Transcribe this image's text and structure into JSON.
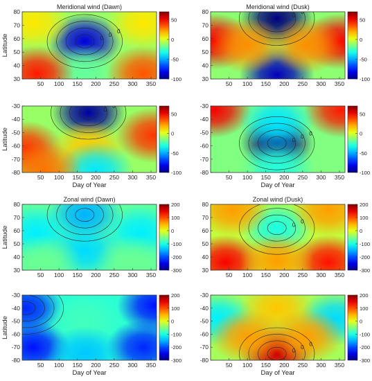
{
  "chart_data": [
    {
      "type": "heatmap",
      "title": "Meridional wind (Dawn)",
      "xlabel": "",
      "ylabel": "Latitude",
      "x_range": [
        0,
        365
      ],
      "y_range": [
        30,
        80
      ],
      "xticks": [
        "50",
        "100",
        "150",
        "200",
        "250",
        "300",
        "350"
      ],
      "yticks": [
        "30",
        "40",
        "50",
        "60",
        "70",
        "80"
      ],
      "color_range": [
        -100,
        70
      ],
      "colorbar_ticks": [
        "50",
        "0",
        "-50",
        "-100"
      ],
      "contour_labels": [
        "0",
        "0",
        "0"
      ],
      "features": [
        {
          "x": 170,
          "y": 58,
          "value": -85
        },
        {
          "x": 170,
          "y": 35,
          "value": -20
        },
        {
          "x": 40,
          "y": 34,
          "value": 45
        },
        {
          "x": 330,
          "y": 34,
          "value": 35
        },
        {
          "x": 30,
          "y": 72,
          "value": 10
        },
        {
          "x": 330,
          "y": 72,
          "value": 10
        }
      ]
    },
    {
      "type": "heatmap",
      "title": "Meridional wind (Dusk)",
      "xlabel": "",
      "ylabel": "",
      "x_range": [
        0,
        365
      ],
      "y_range": [
        30,
        80
      ],
      "xticks": [
        "50",
        "100",
        "150",
        "200",
        "250",
        "300",
        "350"
      ],
      "yticks": [
        "30",
        "40",
        "50",
        "60",
        "70",
        "80"
      ],
      "color_range": [
        -100,
        70
      ],
      "colorbar_ticks": [
        "50",
        "0",
        "-50",
        "-100"
      ],
      "contour_labels": [
        "0",
        "0"
      ],
      "features": [
        {
          "x": 180,
          "y": 75,
          "value": -100
        },
        {
          "x": 180,
          "y": 33,
          "value": -90
        },
        {
          "x": 10,
          "y": 58,
          "value": 50
        },
        {
          "x": 350,
          "y": 58,
          "value": 50
        },
        {
          "x": 100,
          "y": 55,
          "value": 25
        },
        {
          "x": 260,
          "y": 55,
          "value": 25
        }
      ]
    },
    {
      "type": "heatmap",
      "title": "",
      "xlabel": "Day of Year",
      "ylabel": "Latitude",
      "x_range": [
        0,
        365
      ],
      "y_range": [
        -80,
        -30
      ],
      "xticks": [
        "50",
        "100",
        "150",
        "200",
        "250",
        "300",
        "350"
      ],
      "yticks": [
        "-80",
        "-70",
        "-60",
        "-50",
        "-40",
        "-30"
      ],
      "color_range": [
        -100,
        70
      ],
      "colorbar_ticks": [
        "50",
        "0",
        "-50",
        "-100"
      ],
      "contour_labels": [
        "0",
        "0"
      ],
      "features": [
        {
          "x": 180,
          "y": -35,
          "value": -95
        },
        {
          "x": 10,
          "y": -62,
          "value": 40
        },
        {
          "x": 355,
          "y": -52,
          "value": 40
        },
        {
          "x": 180,
          "y": -62,
          "value": 15
        },
        {
          "x": 200,
          "y": -78,
          "value": -40
        },
        {
          "x": 60,
          "y": -78,
          "value": 30
        }
      ]
    },
    {
      "type": "heatmap",
      "title": "",
      "xlabel": "Day of Year",
      "ylabel": "",
      "x_range": [
        0,
        365
      ],
      "y_range": [
        -80,
        -30
      ],
      "xticks": [
        "50",
        "100",
        "150",
        "200",
        "250",
        "300",
        "350"
      ],
      "yticks": [
        "-80",
        "-70",
        "-60",
        "-50",
        "-40",
        "-30"
      ],
      "color_range": [
        -100,
        70
      ],
      "colorbar_ticks": [
        "50",
        "0",
        "-50",
        "-100"
      ],
      "contour_labels": [
        "0",
        "0",
        "0"
      ],
      "features": [
        {
          "x": 180,
          "y": -58,
          "value": -100
        },
        {
          "x": 10,
          "y": -33,
          "value": 50
        },
        {
          "x": 355,
          "y": -33,
          "value": 45
        },
        {
          "x": 180,
          "y": -42,
          "value": -40
        },
        {
          "x": 180,
          "y": -76,
          "value": -30
        },
        {
          "x": 30,
          "y": -78,
          "value": -15
        }
      ]
    },
    {
      "type": "heatmap",
      "title": "Zonal wind (Dawn)",
      "xlabel": "",
      "ylabel": "Latitude",
      "x_range": [
        0,
        365
      ],
      "y_range": [
        30,
        80
      ],
      "xticks": [
        "50",
        "100",
        "150",
        "200",
        "250",
        "300",
        "350"
      ],
      "yticks": [
        "30",
        "40",
        "50",
        "60",
        "70",
        "80"
      ],
      "color_range": [
        -300,
        200
      ],
      "colorbar_ticks": [
        "200",
        "100",
        "0",
        "-100",
        "-200",
        "-300"
      ],
      "contour_labels": [],
      "features": [
        {
          "x": 170,
          "y": 72,
          "value": -150
        },
        {
          "x": 40,
          "y": 58,
          "value": -120
        },
        {
          "x": 320,
          "y": 58,
          "value": -120
        },
        {
          "x": 170,
          "y": 45,
          "value": -130
        },
        {
          "x": 60,
          "y": 36,
          "value": -60
        },
        {
          "x": 300,
          "y": 36,
          "value": -60
        }
      ]
    },
    {
      "type": "heatmap",
      "title": "Zonal wind (Dusk)",
      "xlabel": "",
      "ylabel": "",
      "x_range": [
        0,
        365
      ],
      "y_range": [
        30,
        80
      ],
      "xticks": [
        "50",
        "100",
        "150",
        "200",
        "250",
        "300",
        "350"
      ],
      "yticks": [
        "30",
        "40",
        "50",
        "60",
        "70",
        "80"
      ],
      "color_range": [
        -300,
        200
      ],
      "colorbar_ticks": [
        "200",
        "100",
        "0",
        "-100",
        "-200",
        "-300"
      ],
      "contour_labels": [
        "0",
        "0"
      ],
      "features": [
        {
          "x": 180,
          "y": 62,
          "value": -100
        },
        {
          "x": 40,
          "y": 36,
          "value": 140
        },
        {
          "x": 320,
          "y": 36,
          "value": 130
        },
        {
          "x": 180,
          "y": 37,
          "value": 60
        },
        {
          "x": 60,
          "y": 76,
          "value": 60
        },
        {
          "x": 320,
          "y": 76,
          "value": 60
        }
      ]
    },
    {
      "type": "heatmap",
      "title": "",
      "xlabel": "Day of Year",
      "ylabel": "Latitude",
      "x_range": [
        0,
        365
      ],
      "y_range": [
        -80,
        -30
      ],
      "xticks": [
        "50",
        "100",
        "150",
        "200",
        "250",
        "300",
        "350"
      ],
      "yticks": [
        "-80",
        "-70",
        "-60",
        "-50",
        "-40",
        "-30"
      ],
      "color_range": [
        -300,
        200
      ],
      "colorbar_ticks": [
        "200",
        "100",
        "0",
        "-100",
        "-200",
        "-300"
      ],
      "contour_labels": [],
      "features": [
        {
          "x": 10,
          "y": -40,
          "value": -220
        },
        {
          "x": 360,
          "y": -38,
          "value": -230
        },
        {
          "x": 30,
          "y": -70,
          "value": -230
        },
        {
          "x": 330,
          "y": -70,
          "value": -220
        },
        {
          "x": 170,
          "y": -50,
          "value": -80
        },
        {
          "x": 170,
          "y": -75,
          "value": -140
        }
      ]
    },
    {
      "type": "heatmap",
      "title": "",
      "xlabel": "Day of Year",
      "ylabel": "",
      "x_range": [
        0,
        365
      ],
      "y_range": [
        -80,
        -30
      ],
      "xticks": [
        "50",
        "100",
        "150",
        "200",
        "250",
        "300",
        "350"
      ],
      "yticks": [
        "-80",
        "-70",
        "-60",
        "-50",
        "-40",
        "-30"
      ],
      "color_range": [
        -300,
        200
      ],
      "colorbar_ticks": [
        "200",
        "100",
        "0",
        "-100",
        "-200",
        "-300"
      ],
      "contour_labels": [
        "0",
        "0",
        "0"
      ],
      "features": [
        {
          "x": 180,
          "y": -75,
          "value": 160
        },
        {
          "x": 20,
          "y": -48,
          "value": -120
        },
        {
          "x": 340,
          "y": -48,
          "value": -130
        },
        {
          "x": 180,
          "y": -40,
          "value": 40
        },
        {
          "x": 100,
          "y": -62,
          "value": 60
        },
        {
          "x": 260,
          "y": -62,
          "value": 60
        }
      ]
    }
  ]
}
